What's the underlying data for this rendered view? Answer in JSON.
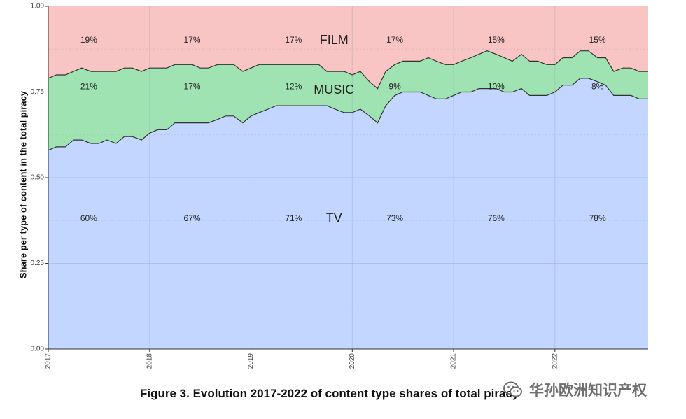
{
  "chart_data": {
    "type": "area",
    "stacked": true,
    "ylabel": "Share per type of content in the total piracy",
    "ylim": [
      0,
      1
    ],
    "y_ticks": [
      "0.00",
      "0.25",
      "0.50",
      "0.75",
      "1.00"
    ],
    "x_ticks": [
      "2017",
      "2018",
      "2019",
      "2020",
      "2021",
      "2022"
    ],
    "xlim": [
      2017.0,
      2022.92
    ],
    "grid": true,
    "colors": {
      "tv": "#c2d6ff",
      "music": "#9ee3b1",
      "film": "#f8c4c4",
      "line": "#333333"
    },
    "x": [
      2017.0,
      2017.08,
      2017.17,
      2017.25,
      2017.33,
      2017.42,
      2017.5,
      2017.58,
      2017.67,
      2017.75,
      2017.83,
      2017.92,
      2018.0,
      2018.08,
      2018.17,
      2018.25,
      2018.33,
      2018.42,
      2018.5,
      2018.58,
      2018.67,
      2018.75,
      2018.83,
      2018.92,
      2019.0,
      2019.08,
      2019.17,
      2019.25,
      2019.33,
      2019.42,
      2019.5,
      2019.58,
      2019.67,
      2019.75,
      2019.83,
      2019.92,
      2020.0,
      2020.08,
      2020.17,
      2020.25,
      2020.33,
      2020.42,
      2020.5,
      2020.58,
      2020.67,
      2020.75,
      2020.83,
      2020.92,
      2021.0,
      2021.08,
      2021.17,
      2021.25,
      2021.33,
      2021.42,
      2021.5,
      2021.58,
      2021.67,
      2021.75,
      2021.83,
      2021.92,
      2022.0,
      2022.08,
      2022.17,
      2022.25,
      2022.33,
      2022.42,
      2022.5,
      2022.58,
      2022.67,
      2022.75,
      2022.83,
      2022.92
    ],
    "series": [
      {
        "name": "TV",
        "values": [
          0.58,
          0.59,
          0.59,
          0.61,
          0.61,
          0.6,
          0.6,
          0.61,
          0.6,
          0.62,
          0.62,
          0.61,
          0.63,
          0.64,
          0.64,
          0.66,
          0.66,
          0.66,
          0.66,
          0.66,
          0.67,
          0.68,
          0.68,
          0.66,
          0.68,
          0.69,
          0.7,
          0.71,
          0.71,
          0.71,
          0.71,
          0.71,
          0.71,
          0.71,
          0.7,
          0.69,
          0.69,
          0.7,
          0.68,
          0.66,
          0.71,
          0.74,
          0.75,
          0.75,
          0.75,
          0.74,
          0.73,
          0.73,
          0.74,
          0.75,
          0.75,
          0.76,
          0.76,
          0.76,
          0.75,
          0.75,
          0.76,
          0.74,
          0.74,
          0.74,
          0.75,
          0.77,
          0.77,
          0.79,
          0.79,
          0.78,
          0.77,
          0.74,
          0.74,
          0.74,
          0.73,
          0.73
        ]
      },
      {
        "name": "MUSIC",
        "values": [
          0.21,
          0.21,
          0.21,
          0.2,
          0.21,
          0.21,
          0.21,
          0.2,
          0.21,
          0.2,
          0.2,
          0.2,
          0.19,
          0.18,
          0.18,
          0.17,
          0.17,
          0.17,
          0.16,
          0.16,
          0.16,
          0.15,
          0.15,
          0.15,
          0.14,
          0.14,
          0.13,
          0.12,
          0.12,
          0.12,
          0.12,
          0.12,
          0.12,
          0.1,
          0.11,
          0.12,
          0.11,
          0.11,
          0.1,
          0.1,
          0.1,
          0.09,
          0.09,
          0.09,
          0.09,
          0.11,
          0.11,
          0.1,
          0.09,
          0.09,
          0.1,
          0.1,
          0.11,
          0.1,
          0.1,
          0.09,
          0.1,
          0.1,
          0.1,
          0.09,
          0.08,
          0.08,
          0.08,
          0.08,
          0.08,
          0.07,
          0.08,
          0.07,
          0.08,
          0.08,
          0.08,
          0.08
        ]
      }
    ],
    "series_labels": [
      {
        "text": "FILM",
        "x": 2019.82,
        "y": 0.9
      },
      {
        "text": "MUSIC",
        "x": 2019.82,
        "y": 0.755
      },
      {
        "text": "TV",
        "x": 2019.82,
        "y": 0.38
      }
    ],
    "annotations": [
      {
        "text": "19%",
        "x": 2017.4,
        "y": 0.9
      },
      {
        "text": "17%",
        "x": 2018.42,
        "y": 0.9
      },
      {
        "text": "17%",
        "x": 2019.42,
        "y": 0.9
      },
      {
        "text": "17%",
        "x": 2020.42,
        "y": 0.9
      },
      {
        "text": "15%",
        "x": 2021.42,
        "y": 0.9
      },
      {
        "text": "15%",
        "x": 2022.42,
        "y": 0.9
      },
      {
        "text": "21%",
        "x": 2017.4,
        "y": 0.765
      },
      {
        "text": "17%",
        "x": 2018.42,
        "y": 0.765
      },
      {
        "text": "12%",
        "x": 2019.42,
        "y": 0.765
      },
      {
        "text": "9%",
        "x": 2020.42,
        "y": 0.765
      },
      {
        "text": "10%",
        "x": 2021.42,
        "y": 0.765
      },
      {
        "text": "8%",
        "x": 2022.42,
        "y": 0.765
      },
      {
        "text": "60%",
        "x": 2017.4,
        "y": 0.38
      },
      {
        "text": "67%",
        "x": 2018.42,
        "y": 0.38
      },
      {
        "text": "71%",
        "x": 2019.42,
        "y": 0.38
      },
      {
        "text": "73%",
        "x": 2020.42,
        "y": 0.38
      },
      {
        "text": "76%",
        "x": 2021.42,
        "y": 0.38
      },
      {
        "text": "78%",
        "x": 2022.42,
        "y": 0.38
      }
    ]
  },
  "caption": "Figure 3. Evolution 2017-2022 of content type shares of total piracy",
  "watermark": {
    "text": "华孙欧洲知识产权",
    "icon": "wechat-icon"
  }
}
